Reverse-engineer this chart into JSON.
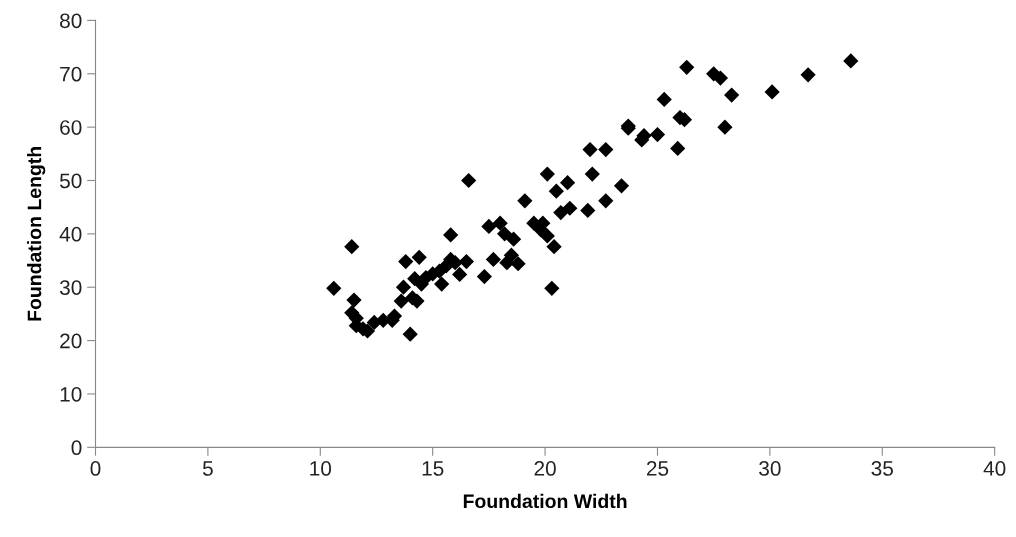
{
  "chart_data": {
    "type": "scatter",
    "xlabel": "Foundation Width",
    "ylabel": "Foundation Length",
    "xlim": [
      0,
      40
    ],
    "ylim": [
      0,
      80
    ],
    "xticks": [
      0,
      5,
      10,
      15,
      20,
      25,
      30,
      35,
      40
    ],
    "yticks": [
      0,
      10,
      20,
      30,
      40,
      50,
      60,
      70,
      80
    ],
    "marker": "diamond",
    "series": [
      {
        "color": "#000000",
        "x": [
          10.6,
          11.4,
          11.4,
          11.5,
          11.6,
          11.6,
          11.9,
          12.1,
          12.4,
          12.8,
          13.2,
          13.3,
          13.6,
          13.7,
          13.8,
          14.0,
          14.1,
          14.2,
          14.3,
          14.4,
          14.5,
          14.7,
          15.0,
          15.3,
          15.4,
          15.6,
          15.8,
          15.8,
          16.0,
          16.2,
          16.5,
          16.6,
          17.3,
          17.5,
          17.7,
          18.0,
          18.2,
          18.3,
          18.5,
          18.6,
          18.8,
          19.1,
          19.5,
          19.8,
          19.9,
          20.1,
          20.1,
          20.3,
          20.4,
          20.5,
          20.7,
          21.0,
          21.1,
          21.9,
          22.0,
          22.1,
          22.7,
          22.7,
          23.4,
          23.7,
          23.7,
          24.3,
          24.4,
          25.0,
          25.3,
          25.9,
          26.0,
          26.2,
          26.3,
          27.5,
          27.8,
          28.0,
          28.3,
          30.1,
          31.7,
          33.6
        ],
        "values": [
          29.8,
          37.6,
          25.2,
          27.6,
          24.2,
          22.8,
          22.2,
          21.8,
          23.4,
          23.8,
          23.8,
          24.6,
          27.4,
          30,
          34.8,
          21.2,
          28,
          31.6,
          27.4,
          35.6,
          30.6,
          31.8,
          32.5,
          33,
          30.6,
          34,
          35.2,
          39.8,
          34.6,
          32.4,
          34.8,
          50,
          32,
          41.4,
          35.2,
          42,
          40,
          34.6,
          36,
          39,
          34.4,
          46.2,
          42,
          40.8,
          42,
          51.2,
          39.6,
          29.8,
          37.6,
          48,
          44,
          49.6,
          44.8,
          44.4,
          55.8,
          51.2,
          55.8,
          46.2,
          49,
          60.2,
          59.8,
          57.6,
          58.4,
          58.6,
          65.2,
          56,
          61.8,
          61.4,
          71.2,
          70,
          69.2,
          60,
          66,
          66.6,
          69.8,
          72.4
        ]
      }
    ]
  }
}
